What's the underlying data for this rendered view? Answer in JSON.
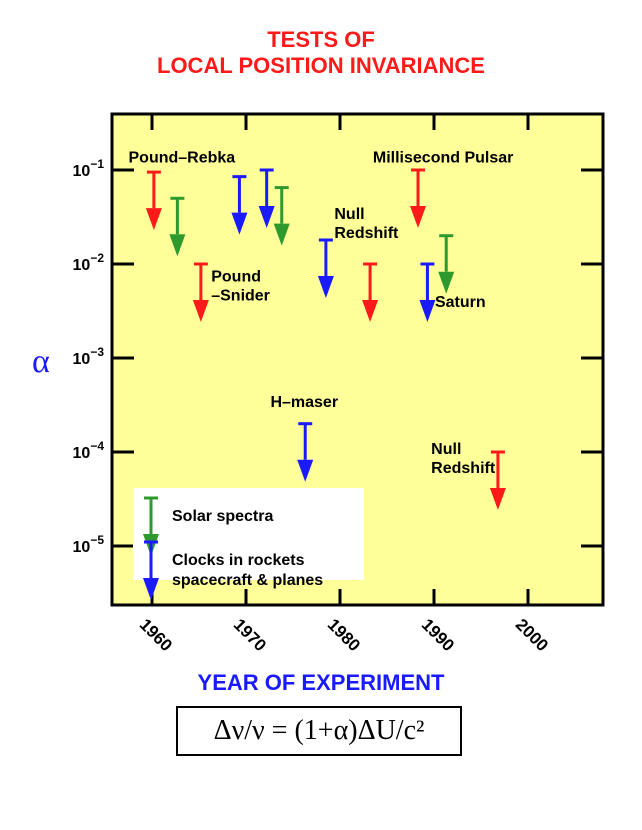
{
  "title_line1": "TESTS OF",
  "title_line2": "LOCAL POSITION INVARIANCE",
  "xlabel": "YEAR OF EXPERIMENT",
  "ylabel": "α",
  "formula": "Δν/ν = (1+α)ΔU/c²",
  "colors": {
    "title": "#ff1a1a",
    "axis_label": "#1a1aff",
    "panel_bg": "#ffff99",
    "red": "#ff1a1a",
    "green": "#2e9a2e",
    "blue": "#1a1aff"
  },
  "chart_data": {
    "type": "scatter",
    "marker": "upper-limit-arrow",
    "x_range": [
      1955,
      2005
    ],
    "y_range": [
      3e-06,
      0.5
    ],
    "y_scale": "log",
    "x_ticks": [
      "1960",
      "1970",
      "1980",
      "1990",
      "2000"
    ],
    "y_ticks": [
      {
        "value": 0.1,
        "base": "10",
        "exp": "−1"
      },
      {
        "value": 0.01,
        "base": "10",
        "exp": "−2"
      },
      {
        "value": 0.001,
        "base": "10",
        "exp": "−3"
      },
      {
        "value": 0.0001,
        "base": "10",
        "exp": "−4"
      },
      {
        "value": 1e-05,
        "base": "10",
        "exp": "−5"
      }
    ],
    "points": [
      {
        "year": 1960.2,
        "alpha": 0.095,
        "color": "red"
      },
      {
        "year": 1962.7,
        "alpha": 0.05,
        "color": "green"
      },
      {
        "year": 1965.2,
        "alpha": 0.01,
        "color": "red"
      },
      {
        "year": 1969.3,
        "alpha": 0.085,
        "color": "blue"
      },
      {
        "year": 1972.2,
        "alpha": 0.1,
        "color": "blue"
      },
      {
        "year": 1973.8,
        "alpha": 0.065,
        "color": "green"
      },
      {
        "year": 1976.3,
        "alpha": 0.0002,
        "color": "blue"
      },
      {
        "year": 1978.5,
        "alpha": 0.018,
        "color": "blue"
      },
      {
        "year": 1983.2,
        "alpha": 0.01,
        "color": "red"
      },
      {
        "year": 1988.3,
        "alpha": 0.1,
        "color": "red"
      },
      {
        "year": 1989.3,
        "alpha": 0.01,
        "color": "blue"
      },
      {
        "year": 1991.3,
        "alpha": 0.02,
        "color": "green"
      },
      {
        "year": 1996.8,
        "alpha": 0.0001,
        "color": "red"
      }
    ],
    "annotations": [
      {
        "lines": [
          "Pound–Rebka"
        ],
        "year": 1957.5,
        "alpha": 0.12
      },
      {
        "lines": [
          "Millisecond Pulsar"
        ],
        "year": 1983.5,
        "alpha": 0.12
      },
      {
        "lines": [
          "Pound",
          "–Snider"
        ],
        "year": 1966.3,
        "alpha": 0.0065
      },
      {
        "lines": [
          "Null",
          "Redshift"
        ],
        "year": 1979.4,
        "alpha": 0.03
      },
      {
        "lines": [
          "Saturn"
        ],
        "year": 1990.1,
        "alpha": 0.0035
      },
      {
        "lines": [
          "H–maser"
        ],
        "year": 1972.6,
        "alpha": 0.0003
      },
      {
        "lines": [
          "Null",
          "Redshift"
        ],
        "year": 1989.7,
        "alpha": 9.5e-05
      }
    ],
    "legend": [
      {
        "label": "Solar spectra",
        "color": "green"
      },
      {
        "label": "Clocks in rockets",
        "label2": "spacecraft & planes",
        "color": "blue"
      }
    ],
    "grid": false
  }
}
